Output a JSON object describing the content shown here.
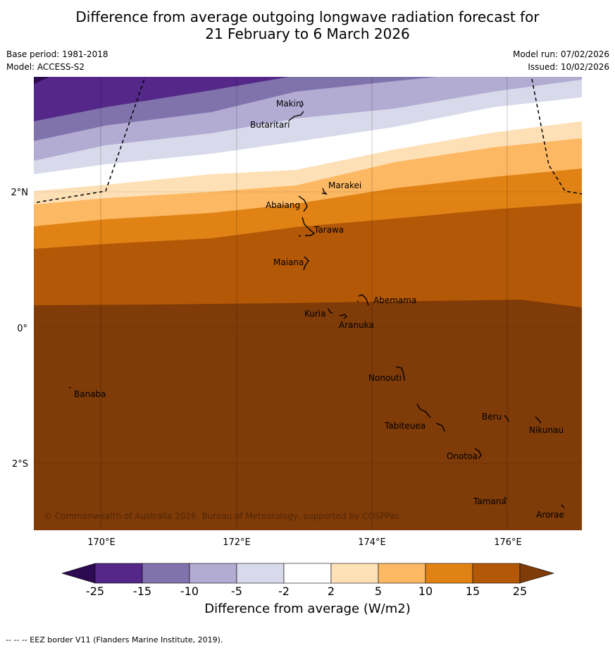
{
  "title": {
    "line1": "Difference from average outgoing longwave radiation forecast for",
    "line2": "21 February to 6 March 2026"
  },
  "meta": {
    "base_period": "Base period: 1981-2018",
    "model": "Model: ACCESS-S2",
    "model_run": "Model run: 07/02/2026",
    "issued": "Issued: 10/02/2026"
  },
  "map": {
    "lon_labels": [
      "170°E",
      "172°E",
      "174°E",
      "176°E"
    ],
    "lat_labels": [
      "2°N",
      "0°",
      "2°S"
    ],
    "copyright": "© Commonwealth of Australia 2026, Bureau of Meteorology, supported by COSPPac",
    "islands": [
      "Makin",
      "Butaritari",
      "Marakei",
      "Abaiang",
      "Tarawa",
      "Maiana",
      "Abemama",
      "Kuria",
      "Aranuka",
      "Nonouti",
      "Banaba",
      "Beru",
      "Nikunau",
      "Tabiteuea",
      "Onotoa",
      "Tamana",
      "Arorae"
    ]
  },
  "colorbar": {
    "title": "Difference from average (W/m2)",
    "ticks": [
      "-25",
      "-15",
      "-10",
      "-5",
      "-2",
      "2",
      "5",
      "10",
      "15",
      "25"
    ],
    "colors": [
      "#2d0a52",
      "#542788",
      "#8073ac",
      "#b2abd2",
      "#d8daeb",
      "#ffffff",
      "#fee0b6",
      "#fdb863",
      "#e08214",
      "#b35806",
      "#7f3b08"
    ]
  },
  "footer": "--  --  -- EEZ border V11 (Flanders Marine Institute, 2019)."
}
